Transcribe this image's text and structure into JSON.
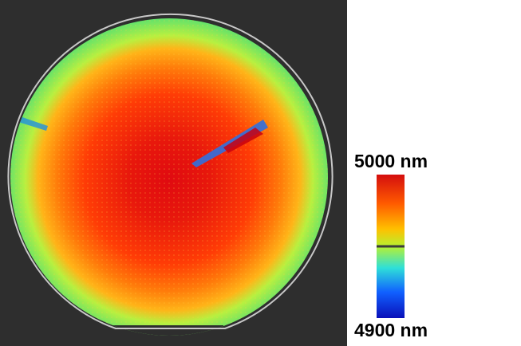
{
  "colorbar": {
    "max_label": "5000 nm",
    "min_label": "4900 nm",
    "colors": [
      "#d40e0e",
      "#ff5a00",
      "#ffc000",
      "#b8f030",
      "#2fe0d8",
      "#1060ff",
      "#0a10b8"
    ]
  },
  "wafer": {
    "background_color": "#2e2e2e",
    "outline_color": "#c8c8c8"
  }
}
